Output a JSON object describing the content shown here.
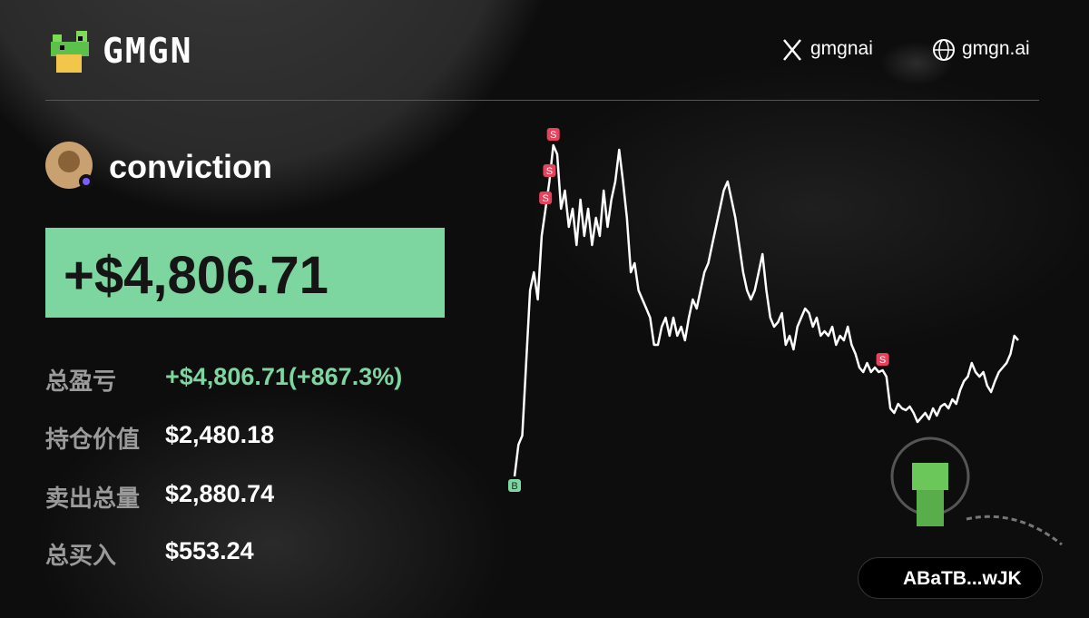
{
  "header": {
    "brand": "GMGN",
    "links": [
      "gmgnai",
      "gmgn.ai"
    ]
  },
  "profile": {
    "name": "conviction"
  },
  "pnl": "+$4,806.71",
  "stats": [
    {
      "label": "总盈亏",
      "value": "+$4,806.71(+867.3%)"
    },
    {
      "label": "持仓价值",
      "value": "$2,480.18"
    },
    {
      "label": "卖出总量",
      "value": "$2,880.74"
    },
    {
      "label": "总买入",
      "value": "$553.24"
    }
  ],
  "wallet": "ABaTB...wJK",
  "chart_data": {
    "type": "line",
    "color": "#ffffff",
    "ylim": [
      0,
      380
    ],
    "values": [
      5,
      40,
      50,
      130,
      210,
      230,
      200,
      270,
      300,
      330,
      370,
      360,
      300,
      320,
      280,
      300,
      260,
      310,
      270,
      300,
      260,
      290,
      270,
      320,
      280,
      310,
      330,
      365,
      330,
      290,
      230,
      240,
      210,
      200,
      190,
      180,
      150,
      150,
      170,
      180,
      160,
      180,
      160,
      170,
      155,
      180,
      200,
      190,
      210,
      230,
      240,
      260,
      280,
      300,
      320,
      330,
      310,
      290,
      260,
      230,
      210,
      200,
      210,
      230,
      250,
      210,
      180,
      170,
      175,
      185,
      150,
      160,
      145,
      170,
      180,
      190,
      185,
      170,
      180,
      160,
      165,
      160,
      170,
      150,
      160,
      155,
      170,
      150,
      140,
      125,
      120,
      130,
      120,
      125,
      120,
      122,
      115,
      80,
      75,
      85,
      80,
      78,
      82,
      75,
      65,
      70,
      75,
      68,
      80,
      72,
      82,
      85,
      80,
      90,
      85,
      100,
      110,
      115,
      130,
      120,
      115,
      120,
      105,
      98,
      110,
      120,
      125,
      130,
      140,
      160,
      155
    ],
    "markers": [
      {
        "label": "B",
        "index": 0,
        "color": "#7ed6a0"
      },
      {
        "label": "S",
        "index": 8,
        "color": "#e8415c"
      },
      {
        "label": "S",
        "index": 9,
        "color": "#e8415c"
      },
      {
        "label": "S",
        "index": 10,
        "color": "#e8415c"
      },
      {
        "label": "S",
        "index": 95,
        "color": "#e8415c"
      }
    ]
  }
}
